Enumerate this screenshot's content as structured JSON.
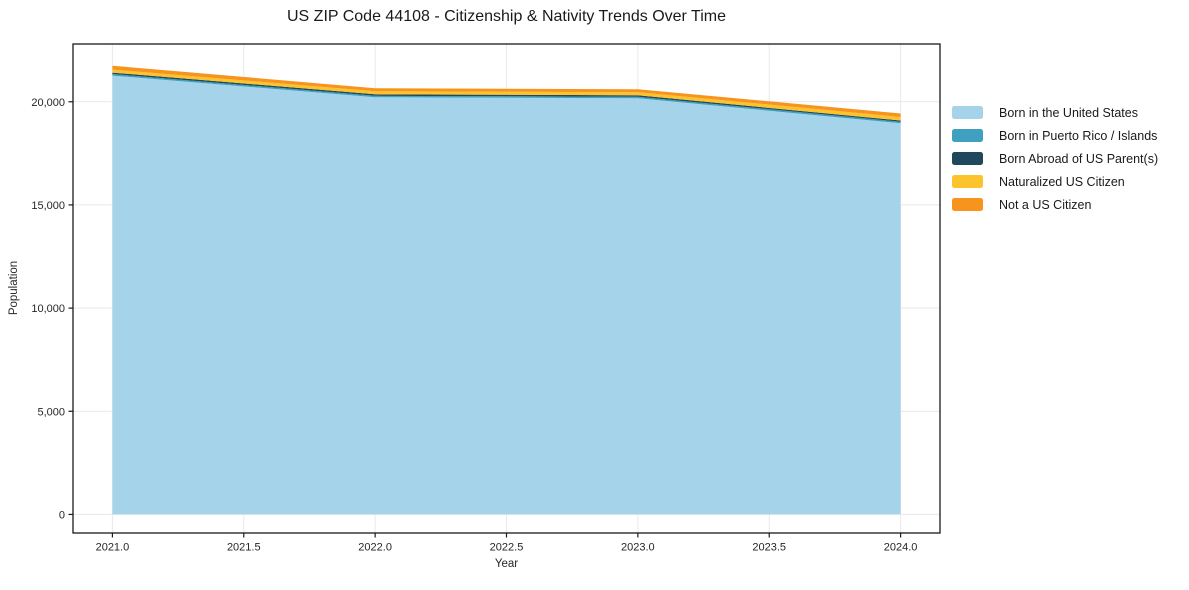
{
  "title": "US ZIP Code 44108 - Citizenship & Nativity Trends Over Time",
  "axes": {
    "x_label": "Year",
    "y_label": "Population",
    "x_ticks": [
      "2021.0",
      "2021.5",
      "2022.0",
      "2022.5",
      "2023.0",
      "2023.5",
      "2024.0"
    ],
    "y_ticks": [
      "0",
      "5,000",
      "10,000",
      "15,000",
      "20,000"
    ]
  },
  "legend": {
    "items": [
      {
        "label": "Born in the United States",
        "color": "#a4d3ea"
      },
      {
        "label": "Born in Puerto Rico / Islands",
        "color": "#3fa0c0"
      },
      {
        "label": "Born Abroad of US Parent(s)",
        "color": "#20485c"
      },
      {
        "label": "Naturalized US Citizen",
        "color": "#fcc32d"
      },
      {
        "label": "Not a US Citizen",
        "color": "#f7941e"
      }
    ]
  },
  "colors": {
    "plot_background": "#ffffff",
    "gridline": "#e9e9e9",
    "spine": "#1a1a1a",
    "tick_label": "#262626"
  },
  "chart_data": {
    "type": "area",
    "stacked": true,
    "title": "US ZIP Code 44108 - Citizenship & Nativity Trends Over Time",
    "xlabel": "Year",
    "ylabel": "Population",
    "x": [
      2021,
      2022,
      2023,
      2024
    ],
    "series": [
      {
        "name": "Born in the United States",
        "color": "#a4d3ea",
        "values": [
          21270,
          20220,
          20170,
          18960
        ]
      },
      {
        "name": "Born in Puerto Rico / Islands",
        "color": "#3fa0c0",
        "values": [
          75,
          70,
          75,
          75
        ]
      },
      {
        "name": "Born Abroad of US Parent(s)",
        "color": "#20485c",
        "values": [
          70,
          70,
          70,
          55
        ]
      },
      {
        "name": "Naturalized US Citizen",
        "color": "#fcc32d",
        "values": [
          145,
          150,
          150,
          170
        ]
      },
      {
        "name": "Not a US Citizen",
        "color": "#f7941e",
        "values": [
          190,
          150,
          145,
          170
        ]
      }
    ],
    "totals": [
      21750,
      20660,
      20610,
      19430
    ],
    "xlim": [
      2020.85,
      2024.15
    ],
    "ylim": [
      -900,
      22800
    ],
    "x_tick_values": [
      2021.0,
      2021.5,
      2022.0,
      2022.5,
      2023.0,
      2023.5,
      2024.0
    ],
    "y_tick_values": [
      0,
      5000,
      10000,
      15000,
      20000
    ],
    "grid": true,
    "legend_position": "right-outside"
  }
}
